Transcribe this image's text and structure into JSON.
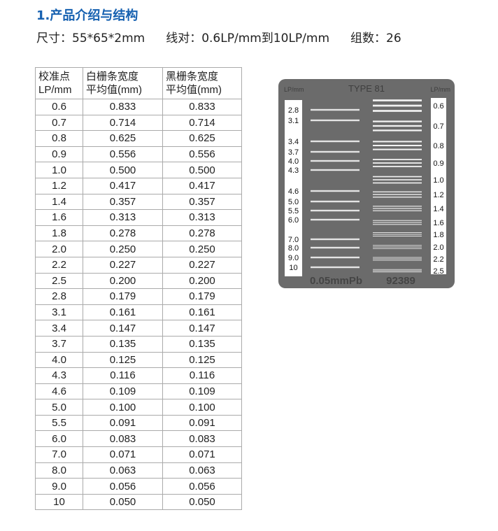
{
  "heading": "1.产品介绍与结构",
  "specs": [
    "尺寸：55*65*2mm",
    "线对：0.6LP/mm到10LP/mm",
    "组数：26"
  ],
  "table": {
    "headers": [
      [
        "校准点",
        "LP/mm"
      ],
      [
        "白栅条宽度",
        "平均值(mm)"
      ],
      [
        "黑栅条宽度",
        "平均值(mm)"
      ]
    ],
    "rows": [
      [
        "0.6",
        "0.833",
        "0.833"
      ],
      [
        "0.7",
        "0.714",
        "0.714"
      ],
      [
        "0.8",
        "0.625",
        "0.625"
      ],
      [
        "0.9",
        "0.556",
        "0.556"
      ],
      [
        "1.0",
        "0.500",
        "0.500"
      ],
      [
        "1.2",
        "0.417",
        "0.417"
      ],
      [
        "1.4",
        "0.357",
        "0.357"
      ],
      [
        "1.6",
        "0.313",
        "0.313"
      ],
      [
        "1.8",
        "0.278",
        "0.278"
      ],
      [
        "2.0",
        "0.250",
        "0.250"
      ],
      [
        "2.2",
        "0.227",
        "0.227"
      ],
      [
        "2.5",
        "0.200",
        "0.200"
      ],
      [
        "2.8",
        "0.179",
        "0.179"
      ],
      [
        "3.1",
        "0.161",
        "0.161"
      ],
      [
        "3.4",
        "0.147",
        "0.147"
      ],
      [
        "3.7",
        "0.135",
        "0.135"
      ],
      [
        "4.0",
        "0.125",
        "0.125"
      ],
      [
        "4.3",
        "0.116",
        "0.116"
      ],
      [
        "4.6",
        "0.109",
        "0.109"
      ],
      [
        "5.0",
        "0.100",
        "0.100"
      ],
      [
        "5.5",
        "0.091",
        "0.091"
      ],
      [
        "6.0",
        "0.083",
        "0.083"
      ],
      [
        "7.0",
        "0.071",
        "0.071"
      ],
      [
        "8.0",
        "0.063",
        "0.063"
      ],
      [
        "9.0",
        "0.056",
        "0.056"
      ],
      [
        "10",
        "0.050",
        "0.050"
      ]
    ]
  },
  "phantom": {
    "type_label": "TYPE 81",
    "unit_left": "LP/mm",
    "unit_right": "LP/mm",
    "thickness": "0.05mmPb",
    "serial": "92389",
    "left_groups": [
      "2.8",
      "3.1",
      "3.4",
      "3.7",
      "4.0",
      "4.3",
      "4.6",
      "5.0",
      "5.5",
      "6.0",
      "7.0",
      "8.0",
      "9.0",
      "10"
    ],
    "right_groups": [
      "0.6",
      "0.7",
      "0.8",
      "0.9",
      "1.0",
      "1.2",
      "1.4",
      "1.6",
      "1.8",
      "2.0",
      "2.2",
      "2.5"
    ]
  }
}
